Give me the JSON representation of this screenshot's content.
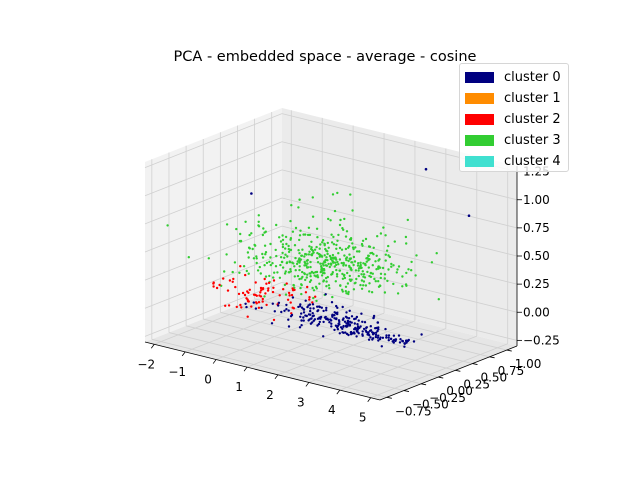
{
  "chart_data": {
    "type": "scatter",
    "projection": "3d",
    "title": "PCA - embedded space - average - cosine",
    "xlabel": "",
    "ylabel": "",
    "zlabel": "",
    "xlim": [
      -2.3,
      5.3
    ],
    "ylim": [
      -0.85,
      1.15
    ],
    "zlim": [
      -0.3,
      1.3
    ],
    "x_ticks": [
      "−2",
      "−1",
      "0",
      "1",
      "2",
      "3",
      "4",
      "5"
    ],
    "x_tick_values": [
      -2,
      -1,
      0,
      1,
      2,
      3,
      4,
      5
    ],
    "y_ticks": [
      "−0.75",
      "−0.50",
      "−0.25",
      "0.00",
      "0.25",
      "0.50",
      "0.75",
      "1.00"
    ],
    "y_tick_values": [
      -0.75,
      -0.5,
      -0.25,
      0.0,
      0.25,
      0.5,
      0.75,
      1.0
    ],
    "z_ticks": [
      "−0.25",
      "0.00",
      "0.25",
      "0.50",
      "0.75",
      "1.00",
      "1.25"
    ],
    "z_tick_values": [
      -0.25,
      0.0,
      0.25,
      0.5,
      0.75,
      1.0,
      1.25
    ],
    "grid": true,
    "legend_position": "top-right",
    "series": [
      {
        "name": "cluster 0",
        "color": "#000080",
        "cluster_center": [
          2.2,
          -0.3,
          0.05
        ],
        "cluster_spread": [
          0.8,
          0.15,
          0.07
        ],
        "approx_count": 250,
        "outliers": [
          [
            2.8,
            0.95,
            1.15
          ],
          [
            4.3,
            0.9,
            0.85
          ],
          [
            -0.3,
            -0.2,
            1.0
          ],
          [
            3.9,
            -0.25,
            0.15
          ]
        ]
      },
      {
        "name": "cluster 1",
        "color": "#ff8c00",
        "approx_count": 0
      },
      {
        "name": "cluster 2",
        "color": "#ff0000",
        "cluster_center": [
          0.2,
          -0.3,
          0.1
        ],
        "cluster_spread": [
          0.7,
          0.2,
          0.08
        ],
        "approx_count": 80
      },
      {
        "name": "cluster 3",
        "color": "#32cd32",
        "cluster_center": [
          1.2,
          0.2,
          0.25
        ],
        "cluster_spread": [
          1.2,
          0.3,
          0.15
        ],
        "approx_count": 500
      },
      {
        "name": "cluster 4",
        "color": "#40e0d0",
        "approx_count": 0
      }
    ]
  }
}
